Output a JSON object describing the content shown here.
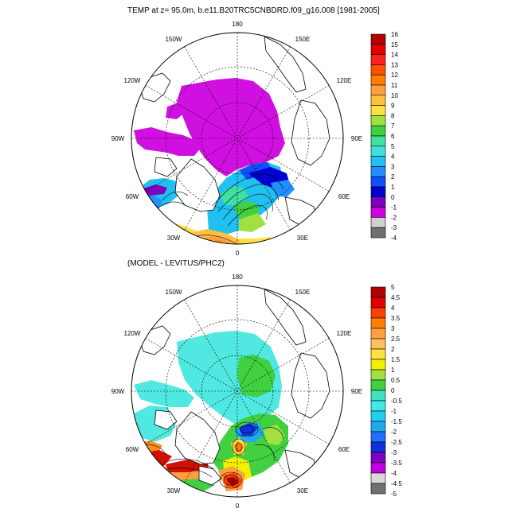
{
  "figure": {
    "top_title": "TEMP at z=  95.0m, b.e11.B20TRC5CNBDRD.f09_g16.008 [1981-2005]",
    "bottom_title": "(MODEL - LEVITUS/PHC2)"
  },
  "top_map": {
    "lon_labels": {
      "n180": "180",
      "w150": "150W",
      "e150": "150E",
      "w120": "120W",
      "e120": "120E",
      "w90": "90W",
      "e90": "90E",
      "w60": "60W",
      "e60": "60E",
      "w30": "30W",
      "e30": "30E",
      "zero": "0"
    },
    "colorbar": {
      "labels": [
        "16",
        "15",
        "14",
        "13",
        "12",
        "11",
        "10",
        "9",
        "8",
        "7",
        "6",
        "5",
        "4",
        "3",
        "2",
        "1",
        "0",
        "-1",
        "-2",
        "-3",
        "-4"
      ],
      "colors": [
        "#b30000",
        "#e00000",
        "#ff2020",
        "#ff5000",
        "#ff8000",
        "#ffa040",
        "#ffc040",
        "#ffe040",
        "#a0e040",
        "#40d040",
        "#40e0a0",
        "#40e0e0",
        "#20c0f0",
        "#2090ff",
        "#1050ff",
        "#0000d0",
        "#8000c0",
        "#d000e0",
        "#d0d0d0",
        "#707070"
      ]
    }
  },
  "bottom_map": {
    "lon_labels": {
      "n180": "180",
      "w150": "150W",
      "e150": "150E",
      "w120": "120W",
      "e120": "120E",
      "w90": "90W",
      "e90": "90E",
      "w60": "60W",
      "e60": "60E",
      "w30": "30W",
      "e30": "30E",
      "zero": "0"
    },
    "colorbar": {
      "labels": [
        "5",
        "4.5",
        "4",
        "3.5",
        "3",
        "2.5",
        "2",
        "1.5",
        "1",
        "0.5",
        "0",
        "-0.5",
        "-1",
        "-1.5",
        "-2",
        "-2.5",
        "-3",
        "-3.5",
        "-4",
        "-4.5",
        "-5"
      ],
      "colors": [
        "#b30000",
        "#e00000",
        "#ff4000",
        "#ff8000",
        "#ffa040",
        "#ffc060",
        "#ffe040",
        "#f0f000",
        "#a0e040",
        "#40d040",
        "#40e0c0",
        "#40e8e8",
        "#20d0f0",
        "#20a8f0",
        "#2070ff",
        "#1030e0",
        "#8000c0",
        "#c000e0",
        "#d8d8d8",
        "#707070"
      ]
    }
  },
  "palette": {
    "magenta": "#d010e0",
    "violet": "#8000c0",
    "cyan_light": "#50e8e0",
    "green": "#40d040",
    "yellow": "#f0f000",
    "orange": "#ff9020",
    "red": "#d01000",
    "blue": "#1040ff"
  }
}
